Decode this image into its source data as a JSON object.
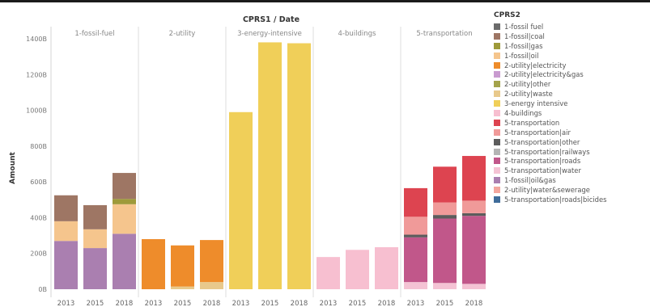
{
  "chart_data": {
    "type": "bar",
    "stacked": true,
    "title": "CPRS1 / Date",
    "ylabel": "Amount",
    "ylim": [
      0,
      14500
    ],
    "yticks": [
      0,
      2000,
      4000,
      6000,
      8000,
      10000,
      12000,
      14000
    ],
    "ytick_labels": [
      "0B",
      "200B",
      "400B",
      "600B",
      "800B",
      "1000B",
      "1200B",
      "1400B"
    ],
    "legend_title": "CPRS2",
    "legend_position": "right",
    "grid": false,
    "panels": [
      {
        "label": "1-fossil-fuel",
        "x": [
          "2013",
          "2015",
          "2018"
        ],
        "stacks": [
          {
            "series": "1-fossil|oil&gas",
            "values": [
              2700,
              2300,
              3100
            ]
          },
          {
            "series": "1-fossil|oil",
            "values": [
              1100,
              1050,
              1650
            ]
          },
          {
            "series": "1-fossil|gas",
            "values": [
              0,
              0,
              300
            ]
          },
          {
            "series": "1-fossil|coal",
            "values": [
              1450,
              1350,
              1450
            ]
          }
        ]
      },
      {
        "label": "2-utility",
        "x": [
          "2013",
          "2015",
          "2018"
        ],
        "stacks": [
          {
            "series": "2-utility|waste",
            "values": [
              0,
              150,
              400
            ]
          },
          {
            "series": "2-utility|electricity",
            "values": [
              2800,
              2300,
              2350
            ]
          }
        ]
      },
      {
        "label": "3-energy-intensive",
        "x": [
          "2013",
          "2015",
          "2018"
        ],
        "stacks": [
          {
            "series": "3-energy-intensive",
            "values": [
              9900,
              13800,
              13750
            ]
          }
        ]
      },
      {
        "label": "4-buildings",
        "x": [
          "2013",
          "2015",
          "2018"
        ],
        "stacks": [
          {
            "series": "4-buildings",
            "values": [
              1800,
              2200,
              2350
            ]
          }
        ]
      },
      {
        "label": "5-transportation",
        "x": [
          "2013",
          "2015",
          "2018"
        ],
        "stacks": [
          {
            "series": "5-transportation|water",
            "values": [
              400,
              350,
              300
            ]
          },
          {
            "series": "5-transportation|roads",
            "values": [
              2500,
              3600,
              3800
            ]
          },
          {
            "series": "5-transportation|other",
            "values": [
              150,
              200,
              150
            ]
          },
          {
            "series": "5-transportation|air",
            "values": [
              1000,
              700,
              700
            ]
          },
          {
            "series": "5-transportation",
            "values": [
              1600,
              2000,
              2500
            ]
          }
        ]
      }
    ],
    "legend": [
      {
        "label": "1-fossil fuel",
        "color": "#6b6b6b"
      },
      {
        "label": "1-fossil|coal",
        "color": "#9e7664"
      },
      {
        "label": "1-fossil|gas",
        "color": "#9e9a3a"
      },
      {
        "label": "1-fossil|oil",
        "color": "#f5c58d"
      },
      {
        "label": "2-utility|electricity",
        "color": "#ee8c2b"
      },
      {
        "label": "2-utility|electricity&gas",
        "color": "#c99bd0"
      },
      {
        "label": "2-utility|other",
        "color": "#a4a34b"
      },
      {
        "label": "2-utility|waste",
        "color": "#e8c98c"
      },
      {
        "label": "3-energy intensive",
        "color": "#f0cf59"
      },
      {
        "label": "4-buildings",
        "color": "#f7bfd0"
      },
      {
        "label": "5-transportation",
        "color": "#dd4450"
      },
      {
        "label": "5-transportation|air",
        "color": "#f09a99"
      },
      {
        "label": "5-transportation|other",
        "color": "#5c5c5c"
      },
      {
        "label": "5-transportation|railways",
        "color": "#b4b4b4"
      },
      {
        "label": "5-transportation|roads",
        "color": "#c1578a"
      },
      {
        "label": "5-transportation|water",
        "color": "#f4c3d4"
      },
      {
        "label": "1-fossil|oil&gas",
        "color": "#aa7fb0"
      },
      {
        "label": "2-utility|water&sewerage",
        "color": "#f3a79e"
      },
      {
        "label": "5-transportation|roads|bicides",
        "color": "#3f6c9a"
      }
    ]
  }
}
